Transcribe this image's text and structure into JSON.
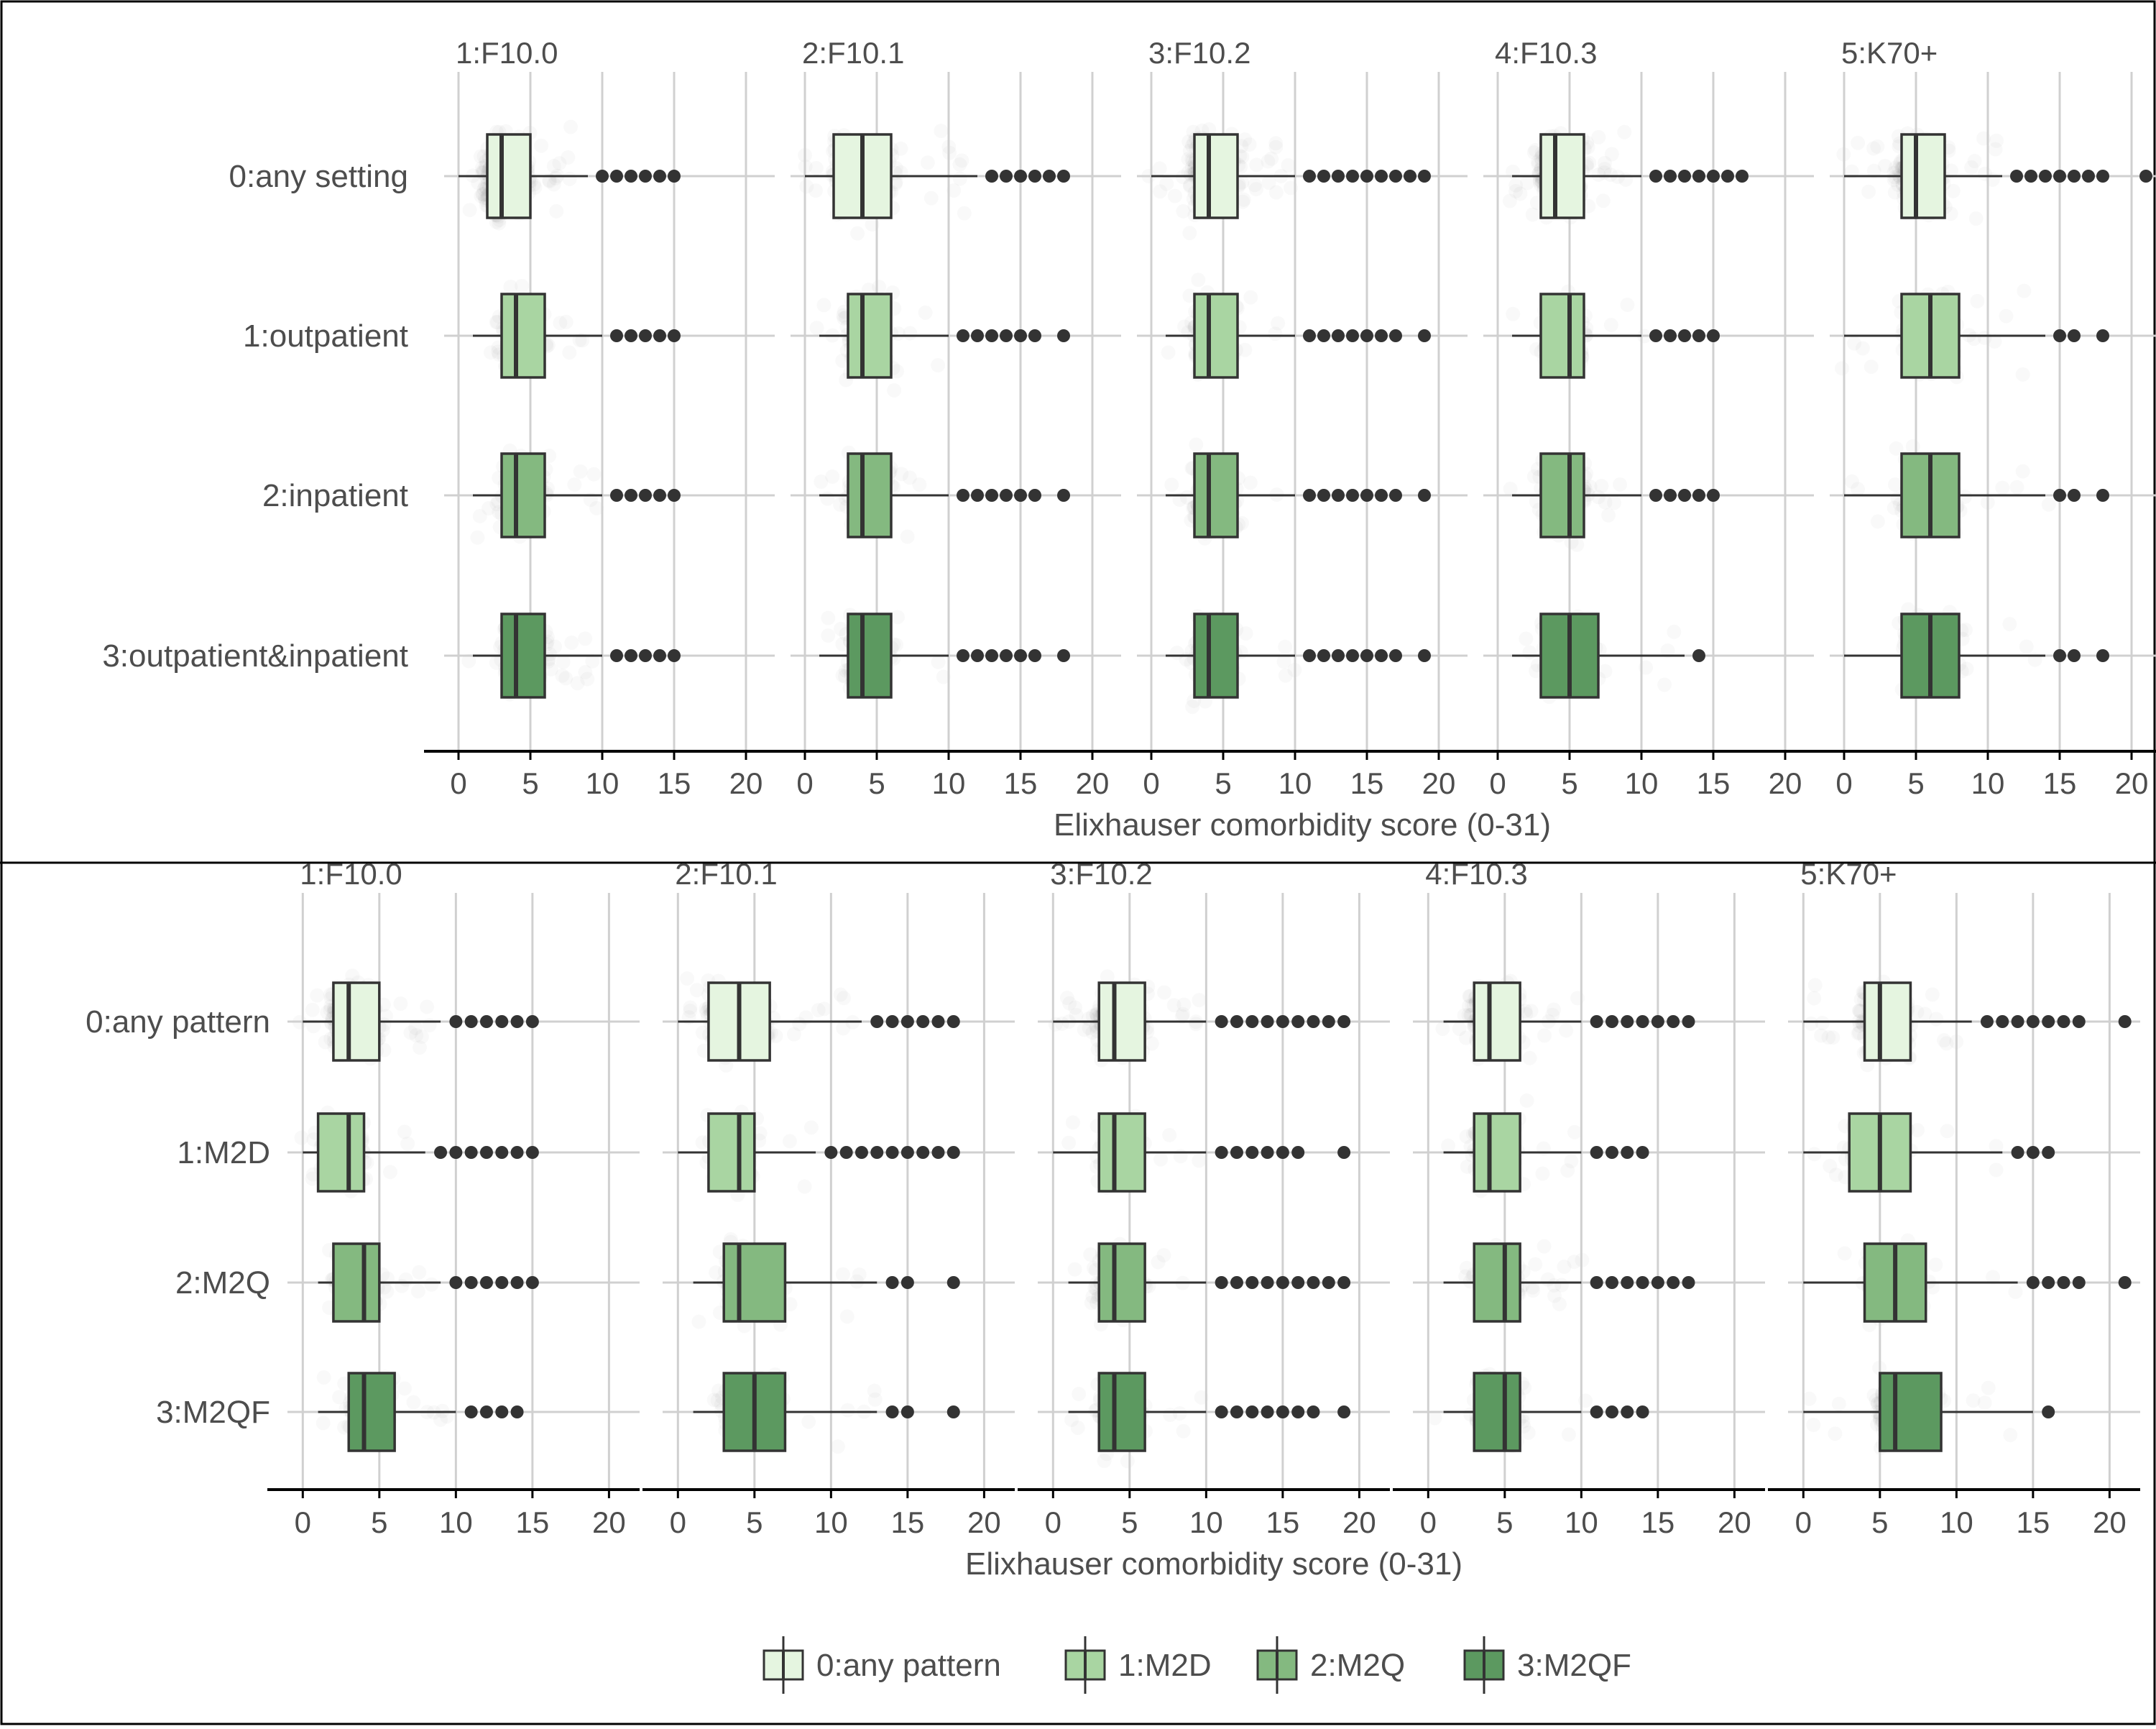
{
  "chart_data": [
    {
      "type": "boxplot",
      "title": "",
      "xlabel": "Elixhauser comorbidity score (0-31)",
      "ylabel": "",
      "xlim": [
        -1,
        22
      ],
      "xticks": [
        0,
        5,
        10,
        15,
        20
      ],
      "grid": true,
      "facets": [
        "1:F10.0",
        "2:F10.1",
        "3:F10.2",
        "4:F10.3",
        "5:K70+"
      ],
      "categories": [
        "0:any setting",
        "1:outpatient",
        "2:inpatient",
        "3:outpatient&inpatient"
      ],
      "panels": [
        {
          "facet": "1:F10.0",
          "boxes": [
            {
              "category": "0:any setting",
              "min": 0,
              "q1": 2,
              "median": 3,
              "q3": 5,
              "max": 9,
              "outliers": [
                10,
                11,
                12,
                13,
                14,
                15
              ]
            },
            {
              "category": "1:outpatient",
              "min": 1,
              "q1": 3,
              "median": 4,
              "q3": 6,
              "max": 10,
              "outliers": [
                11,
                12,
                13,
                14,
                15
              ]
            },
            {
              "category": "2:inpatient",
              "min": 1,
              "q1": 3,
              "median": 4,
              "q3": 6,
              "max": 10,
              "outliers": [
                11,
                12,
                13,
                14,
                15
              ]
            },
            {
              "category": "3:outpatient&inpatient",
              "min": 1,
              "q1": 3,
              "median": 4,
              "q3": 6,
              "max": 10,
              "outliers": [
                11,
                12,
                13,
                14,
                15
              ]
            }
          ]
        },
        {
          "facet": "2:F10.1",
          "boxes": [
            {
              "category": "0:any setting",
              "min": 0,
              "q1": 2,
              "median": 4,
              "q3": 6,
              "max": 12,
              "outliers": [
                13,
                14,
                15,
                16,
                17,
                18
              ]
            },
            {
              "category": "1:outpatient",
              "min": 1,
              "q1": 3,
              "median": 4,
              "q3": 6,
              "max": 10,
              "outliers": [
                11,
                12,
                13,
                14,
                15,
                16,
                18
              ]
            },
            {
              "category": "2:inpatient",
              "min": 1,
              "q1": 3,
              "median": 4,
              "q3": 6,
              "max": 10,
              "outliers": [
                11,
                12,
                13,
                14,
                15,
                16,
                18
              ]
            },
            {
              "category": "3:outpatient&inpatient",
              "min": 1,
              "q1": 3,
              "median": 4,
              "q3": 6,
              "max": 10,
              "outliers": [
                11,
                12,
                13,
                14,
                15,
                16,
                18
              ]
            }
          ]
        },
        {
          "facet": "3:F10.2",
          "boxes": [
            {
              "category": "0:any setting",
              "min": 0,
              "q1": 3,
              "median": 4,
              "q3": 6,
              "max": 10,
              "outliers": [
                11,
                12,
                13,
                14,
                15,
                16,
                17,
                18,
                19
              ]
            },
            {
              "category": "1:outpatient",
              "min": 1,
              "q1": 3,
              "median": 4,
              "q3": 6,
              "max": 10,
              "outliers": [
                11,
                12,
                13,
                14,
                15,
                16,
                17,
                19
              ]
            },
            {
              "category": "2:inpatient",
              "min": 1,
              "q1": 3,
              "median": 4,
              "q3": 6,
              "max": 10,
              "outliers": [
                11,
                12,
                13,
                14,
                15,
                16,
                17,
                19
              ]
            },
            {
              "category": "3:outpatient&inpatient",
              "min": 1,
              "q1": 3,
              "median": 4,
              "q3": 6,
              "max": 10,
              "outliers": [
                11,
                12,
                13,
                14,
                15,
                16,
                17,
                19
              ]
            }
          ]
        },
        {
          "facet": "4:F10.3",
          "boxes": [
            {
              "category": "0:any setting",
              "min": 1,
              "q1": 3,
              "median": 4,
              "q3": 6,
              "max": 10,
              "outliers": [
                11,
                12,
                13,
                14,
                15,
                16,
                17
              ]
            },
            {
              "category": "1:outpatient",
              "min": 1,
              "q1": 3,
              "median": 5,
              "q3": 6,
              "max": 10,
              "outliers": [
                11,
                12,
                13,
                14,
                15
              ]
            },
            {
              "category": "2:inpatient",
              "min": 1,
              "q1": 3,
              "median": 5,
              "q3": 6,
              "max": 10,
              "outliers": [
                11,
                12,
                13,
                14,
                15
              ]
            },
            {
              "category": "3:outpatient&inpatient",
              "min": 1,
              "q1": 3,
              "median": 5,
              "q3": 7,
              "max": 13,
              "outliers": [
                14
              ]
            }
          ]
        },
        {
          "facet": "5:K70+",
          "boxes": [
            {
              "category": "0:any setting",
              "min": 0,
              "q1": 4,
              "median": 5,
              "q3": 7,
              "max": 11,
              "outliers": [
                12,
                13,
                14,
                15,
                16,
                17,
                18,
                21
              ]
            },
            {
              "category": "1:outpatient",
              "min": 0,
              "q1": 4,
              "median": 6,
              "q3": 8,
              "max": 14,
              "outliers": [
                15,
                16,
                18
              ]
            },
            {
              "category": "2:inpatient",
              "min": 0,
              "q1": 4,
              "median": 6,
              "q3": 8,
              "max": 14,
              "outliers": [
                15,
                16,
                18
              ]
            },
            {
              "category": "3:outpatient&inpatient",
              "min": 0,
              "q1": 4,
              "median": 6,
              "q3": 8,
              "max": 14,
              "outliers": [
                15,
                16,
                18
              ]
            }
          ]
        }
      ]
    },
    {
      "type": "boxplot",
      "title": "",
      "xlabel": "Elixhauser comorbidity score (0-31)",
      "ylabel": "",
      "xlim": [
        -1,
        22
      ],
      "xticks": [
        0,
        5,
        10,
        15,
        20
      ],
      "grid": true,
      "facets": [
        "1:F10.0",
        "2:F10.1",
        "3:F10.2",
        "4:F10.3",
        "5:K70+"
      ],
      "categories": [
        "0:any pattern",
        "1:M2D",
        "2:M2Q",
        "3:M2QF"
      ],
      "panels": [
        {
          "facet": "1:F10.0",
          "boxes": [
            {
              "category": "0:any pattern",
              "min": 0,
              "q1": 2,
              "median": 3,
              "q3": 5,
              "max": 9,
              "outliers": [
                10,
                11,
                12,
                13,
                14,
                15
              ]
            },
            {
              "category": "1:M2D",
              "min": 0,
              "q1": 1,
              "median": 3,
              "q3": 4,
              "max": 8,
              "outliers": [
                9,
                10,
                11,
                12,
                13,
                14,
                15
              ]
            },
            {
              "category": "2:M2Q",
              "min": 1,
              "q1": 2,
              "median": 4,
              "q3": 5,
              "max": 9,
              "outliers": [
                10,
                11,
                12,
                13,
                14,
                15
              ]
            },
            {
              "category": "3:M2QF",
              "min": 1,
              "q1": 3,
              "median": 4,
              "q3": 6,
              "max": 10,
              "outliers": [
                11,
                12,
                13,
                14
              ]
            }
          ]
        },
        {
          "facet": "2:F10.1",
          "boxes": [
            {
              "category": "0:any pattern",
              "min": 0,
              "q1": 2,
              "median": 4,
              "q3": 6,
              "max": 12,
              "outliers": [
                13,
                14,
                15,
                16,
                17,
                18
              ]
            },
            {
              "category": "1:M2D",
              "min": 0,
              "q1": 2,
              "median": 4,
              "q3": 5,
              "max": 9,
              "outliers": [
                10,
                11,
                12,
                13,
                14,
                15,
                16,
                17,
                18
              ]
            },
            {
              "category": "2:M2Q",
              "min": 1,
              "q1": 3,
              "median": 4,
              "q3": 7,
              "max": 13,
              "outliers": [
                14,
                15,
                18
              ]
            },
            {
              "category": "3:M2QF",
              "min": 1,
              "q1": 3,
              "median": 5,
              "q3": 7,
              "max": 13,
              "outliers": [
                14,
                15,
                18
              ]
            }
          ]
        },
        {
          "facet": "3:F10.2",
          "boxes": [
            {
              "category": "0:any pattern",
              "min": 0,
              "q1": 3,
              "median": 4,
              "q3": 6,
              "max": 10,
              "outliers": [
                11,
                12,
                13,
                14,
                15,
                16,
                17,
                18,
                19
              ]
            },
            {
              "category": "1:M2D",
              "min": 0,
              "q1": 3,
              "median": 4,
              "q3": 6,
              "max": 10,
              "outliers": [
                11,
                12,
                13,
                14,
                15,
                16,
                19
              ]
            },
            {
              "category": "2:M2Q",
              "min": 1,
              "q1": 3,
              "median": 4,
              "q3": 6,
              "max": 10,
              "outliers": [
                11,
                12,
                13,
                14,
                15,
                16,
                17,
                18,
                19
              ]
            },
            {
              "category": "3:M2QF",
              "min": 1,
              "q1": 3,
              "median": 4,
              "q3": 6,
              "max": 10,
              "outliers": [
                11,
                12,
                13,
                14,
                15,
                16,
                17,
                19
              ]
            }
          ]
        },
        {
          "facet": "4:F10.3",
          "boxes": [
            {
              "category": "0:any pattern",
              "min": 1,
              "q1": 3,
              "median": 4,
              "q3": 6,
              "max": 10,
              "outliers": [
                11,
                12,
                13,
                14,
                15,
                16,
                17
              ]
            },
            {
              "category": "1:M2D",
              "min": 1,
              "q1": 3,
              "median": 4,
              "q3": 6,
              "max": 10,
              "outliers": [
                11,
                12,
                13,
                14
              ]
            },
            {
              "category": "2:M2Q",
              "min": 1,
              "q1": 3,
              "median": 5,
              "q3": 6,
              "max": 10,
              "outliers": [
                11,
                12,
                13,
                14,
                15,
                16,
                17
              ]
            },
            {
              "category": "3:M2QF",
              "min": 1,
              "q1": 3,
              "median": 5,
              "q3": 6,
              "max": 10,
              "outliers": [
                11,
                12,
                13,
                14
              ]
            }
          ]
        },
        {
          "facet": "5:K70+",
          "boxes": [
            {
              "category": "0:any pattern",
              "min": 0,
              "q1": 4,
              "median": 5,
              "q3": 7,
              "max": 11,
              "outliers": [
                12,
                13,
                14,
                15,
                16,
                17,
                18,
                21
              ]
            },
            {
              "category": "1:M2D",
              "min": 0,
              "q1": 3,
              "median": 5,
              "q3": 7,
              "max": 13,
              "outliers": [
                14,
                15,
                16
              ]
            },
            {
              "category": "2:M2Q",
              "min": 0,
              "q1": 4,
              "median": 6,
              "q3": 8,
              "max": 14,
              "outliers": [
                15,
                16,
                17,
                18,
                21
              ]
            },
            {
              "category": "3:M2QF",
              "min": 0,
              "q1": 5,
              "median": 6,
              "q3": 9,
              "max": 15,
              "outliers": [
                16
              ]
            }
          ]
        }
      ]
    }
  ],
  "legend": {
    "placement": "bottom",
    "items": [
      {
        "label": "0:any pattern",
        "color": "#e5f5e0"
      },
      {
        "label": "1:M2D",
        "color": "#a9d5a2"
      },
      {
        "label": "2:M2Q",
        "color": "#84b980"
      },
      {
        "label": "3:M2QF",
        "color": "#5c9960"
      }
    ]
  },
  "colors": {
    "fills": [
      "#e5f5e0",
      "#a9d5a2",
      "#84b980",
      "#5c9960"
    ],
    "outline": "#333333",
    "grid": "#d0d0d0",
    "axis": "#000000",
    "border": "#000000"
  }
}
